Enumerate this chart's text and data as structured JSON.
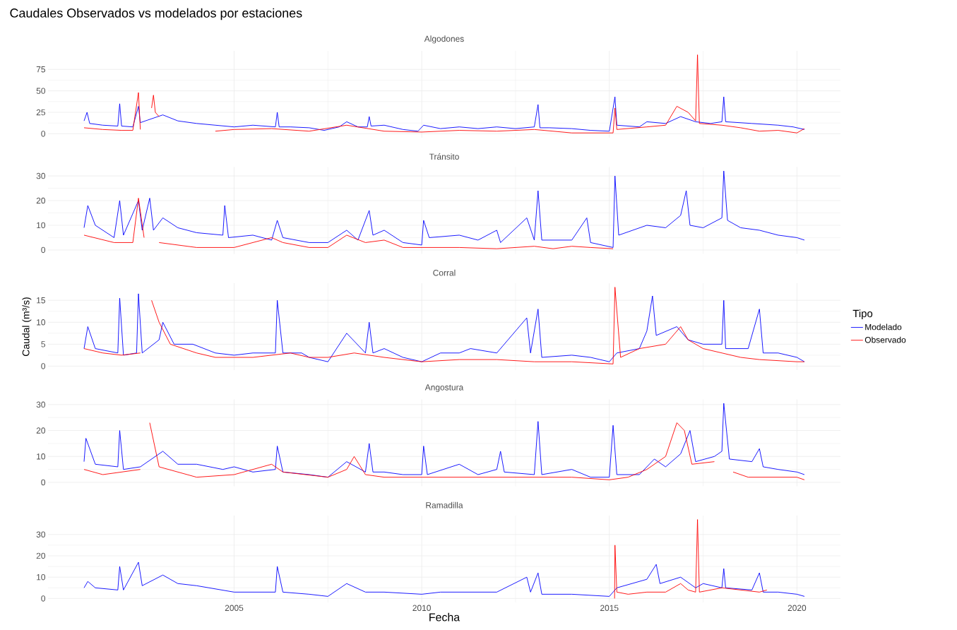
{
  "chart_data": [
    {
      "type": "line",
      "title": "Algodones",
      "annotations": [
        "Caudales Observados vs modelados por estaciones"
      ],
      "xlim": [
        2000.04,
        2021.16
      ],
      "xticks": [
        2005,
        2010,
        2015,
        2020
      ],
      "ylim": [
        -4.6,
        96.6
      ],
      "yticks": [
        0,
        25,
        50,
        75
      ],
      "grid": true,
      "tick_labels": "y",
      "series": [
        {
          "color": "#0000ff",
          "x": [
            2001.0,
            2001.08,
            2001.15,
            2001.5,
            2001.9,
            2001.95,
            2002.0,
            2002.3,
            2002.45,
            2002.5,
            2002.7,
            2003.1,
            2003.5,
            2004.0,
            2004.5,
            2005.0,
            2005.5,
            2006.1,
            2006.15,
            2006.2,
            2006.5,
            2007.0,
            2007.4,
            2007.8,
            2008.0,
            2008.3,
            2008.55,
            2008.6,
            2008.65,
            2009.0,
            2009.5,
            2009.9,
            2010.05,
            2010.5,
            2011.0,
            2011.5,
            2012.0,
            2012.5,
            2013.0,
            2013.1,
            2013.15,
            2013.4,
            2014.0,
            2014.5,
            2015.0,
            2015.15,
            2015.2,
            2015.8,
            2016.0,
            2016.5,
            2016.9,
            2017.3,
            2017.7,
            2018.0,
            2018.05,
            2018.1,
            2018.8,
            2019.5,
            2019.9,
            2020.2
          ],
          "values": [
            15,
            25,
            12,
            10,
            9,
            35,
            9,
            8,
            32,
            13,
            16,
            22,
            15,
            12,
            10,
            8,
            10,
            8,
            25,
            8,
            8,
            7,
            4,
            8,
            14,
            8,
            8,
            20,
            9,
            10,
            5,
            3,
            10,
            6,
            8,
            6,
            8,
            6,
            8,
            34,
            7,
            7,
            6,
            4,
            3,
            43,
            10,
            8,
            14,
            12,
            20,
            14,
            12,
            14,
            43,
            14,
            12,
            10,
            8,
            5
          ]
        },
        {
          "color": "#ff0000",
          "x": [
            2001.0,
            2001.5,
            2002.0,
            2002.3,
            2002.45,
            2002.5,
            2002.7,
            2002.8,
            2002.85,
            2002.9,
            2003.0,
            2003.1,
            2004.5,
            2005.0,
            2006.0,
            2007.0,
            2008.0,
            2009.0,
            2010.0,
            2011.0,
            2012.0,
            2013.0,
            2014.0,
            2015.1,
            2015.15,
            2015.2,
            2016.0,
            2016.5,
            2016.8,
            2017.1,
            2017.3,
            2017.35,
            2017.4,
            2018.0,
            2018.5,
            2019.0,
            2019.5,
            2020.0,
            2020.2
          ],
          "values": [
            7,
            5,
            4,
            4,
            48,
            5,
            null,
            30,
            45,
            25,
            20,
            null,
            3,
            5,
            6,
            3,
            10,
            3,
            2,
            4,
            3,
            5,
            1,
            1,
            30,
            5,
            8,
            10,
            32,
            25,
            15,
            92,
            12,
            10,
            7,
            3,
            4,
            1,
            6
          ]
        }
      ]
    },
    {
      "type": "line",
      "title": "Tránsito",
      "xlim": [
        2000.04,
        2021.16
      ],
      "xticks": [
        2005,
        2010,
        2015,
        2020
      ],
      "ylim": [
        -1.6,
        33.6
      ],
      "yticks": [
        0,
        10,
        20,
        30
      ],
      "grid": true,
      "tick_labels": "y",
      "series": [
        {
          "color": "#0000ff",
          "x": [
            2001.0,
            2001.1,
            2001.3,
            2001.8,
            2001.95,
            2002.05,
            2002.45,
            2002.55,
            2002.75,
            2002.85,
            2003.1,
            2003.5,
            2004.0,
            2004.7,
            2004.75,
            2004.85,
            2005.5,
            2006.0,
            2006.15,
            2006.3,
            2007.0,
            2007.5,
            2008.0,
            2008.3,
            2008.6,
            2008.7,
            2009.0,
            2009.5,
            2010.0,
            2010.05,
            2010.2,
            2011.0,
            2011.5,
            2012.0,
            2012.1,
            2012.8,
            2013.0,
            2013.1,
            2013.2,
            2014.0,
            2014.4,
            2014.5,
            2015.1,
            2015.15,
            2015.25,
            2016.0,
            2016.5,
            2016.9,
            2017.05,
            2017.15,
            2017.5,
            2018.0,
            2018.05,
            2018.15,
            2018.5,
            2019.0,
            2019.5,
            2020.0,
            2020.2
          ],
          "values": [
            9,
            18,
            10,
            5,
            20,
            6,
            20,
            8,
            21,
            8,
            13,
            9,
            7,
            6,
            18,
            5,
            6,
            4,
            12,
            5,
            3,
            3,
            8,
            4,
            16,
            6,
            8,
            3,
            2,
            12,
            5,
            6,
            4,
            8,
            3,
            13,
            4,
            24,
            4,
            4,
            13,
            3,
            1,
            30,
            6,
            10,
            9,
            14,
            24,
            10,
            9,
            13,
            32,
            12,
            9,
            8,
            6,
            5,
            4
          ]
        },
        {
          "color": "#ff0000",
          "x": [
            2001.0,
            2001.8,
            2002.3,
            2002.45,
            2002.6,
            2002.7,
            2003.0,
            2004.0,
            2005.0,
            2006.0,
            2006.3,
            2007.0,
            2007.5,
            2008.0,
            2008.5,
            2009.0,
            2009.5,
            2010.0,
            2011.0,
            2012.0,
            2013.0,
            2013.5,
            2014.0,
            2014.5,
            2015.1
          ],
          "values": [
            6,
            3,
            3,
            21,
            5,
            null,
            3,
            1,
            1,
            5,
            3,
            1,
            1,
            6,
            3,
            4,
            1,
            1,
            1,
            0.5,
            1.5,
            0.5,
            1.5,
            1,
            0.5
          ]
        }
      ]
    },
    {
      "type": "line",
      "title": "Corral",
      "ylabel": "Caudal (m³/s)",
      "legend": "right",
      "legend_title": "Tipo",
      "xlim": [
        2000.04,
        2021.16
      ],
      "xticks": [
        2005,
        2010,
        2015,
        2020
      ],
      "ylim": [
        -0.9,
        18.9
      ],
      "yticks": [
        0,
        5,
        10,
        15
      ],
      "grid": true,
      "tick_labels": "y",
      "series": [
        {
          "name": "Modelado",
          "color": "#0000ff",
          "x": [
            2001.0,
            2001.1,
            2001.3,
            2001.9,
            2001.95,
            2002.05,
            2002.4,
            2002.45,
            2002.55,
            2003.0,
            2003.1,
            2003.4,
            2003.9,
            2004.5,
            2005.0,
            2005.5,
            2006.1,
            2006.15,
            2006.3,
            2006.8,
            2007.0,
            2007.5,
            2008.0,
            2008.5,
            2008.6,
            2008.7,
            2009.0,
            2009.5,
            2010.0,
            2010.5,
            2011.0,
            2011.3,
            2012.0,
            2012.8,
            2012.9,
            2013.1,
            2013.2,
            2014.0,
            2014.5,
            2015.0,
            2015.2,
            2015.8,
            2016.0,
            2016.15,
            2016.25,
            2016.8,
            2017.1,
            2017.5,
            2018.0,
            2018.05,
            2018.1,
            2018.7,
            2019.0,
            2019.1,
            2019.5,
            2020.0,
            2020.2
          ],
          "values": [
            4,
            9,
            4,
            3,
            15.5,
            2.5,
            3,
            16.5,
            3,
            6,
            10,
            5,
            5,
            3,
            2.5,
            3,
            3,
            15,
            3,
            3,
            2,
            1,
            7.5,
            3,
            10,
            3,
            4,
            2,
            1,
            3,
            3,
            4,
            3,
            11,
            3,
            13,
            2,
            2.5,
            2,
            1,
            3,
            4,
            8,
            16,
            7,
            9,
            6,
            5,
            5,
            15,
            4,
            4,
            13,
            3,
            3,
            2,
            1
          ]
        },
        {
          "name": "Observado",
          "color": "#ff0000",
          "x": [
            2001.0,
            2001.5,
            2002.0,
            2002.5,
            2002.7,
            2002.8,
            2003.0,
            2003.3,
            2004.0,
            2004.5,
            2005.5,
            2006.5,
            2007.0,
            2007.5,
            2008.2,
            2009.0,
            2009.5,
            2010.0,
            2011.0,
            2012.0,
            2013.0,
            2014.0,
            2015.1,
            2015.15,
            2015.3,
            2015.8,
            2016.5,
            2016.9,
            2017.1,
            2017.5,
            2018.0,
            2018.5,
            2019.0,
            2020.0,
            2020.2
          ],
          "values": [
            4,
            3,
            2.5,
            3,
            null,
            15,
            10,
            5,
            3,
            2,
            2,
            3,
            2,
            2,
            3,
            2,
            1.5,
            1,
            1.5,
            1.5,
            1,
            1,
            0.5,
            18,
            2,
            4,
            5,
            9,
            6,
            4,
            3,
            2,
            1.5,
            1,
            1
          ]
        }
      ]
    },
    {
      "type": "line",
      "title": "Angostura",
      "xlim": [
        2000.04,
        2021.16
      ],
      "xticks": [
        2005,
        2010,
        2015,
        2020
      ],
      "ylim": [
        -1.5,
        32.0
      ],
      "yticks": [
        0,
        10,
        20,
        30
      ],
      "grid": true,
      "tick_labels": "y",
      "series": [
        {
          "color": "#0000ff",
          "x": [
            2001.0,
            2001.05,
            2001.3,
            2001.9,
            2001.95,
            2002.05,
            2002.5,
            2003.1,
            2003.5,
            2004.0,
            2004.7,
            2005.0,
            2005.5,
            2006.1,
            2006.15,
            2006.3,
            2007.0,
            2007.5,
            2008.0,
            2008.5,
            2008.6,
            2008.7,
            2009.0,
            2009.5,
            2010.0,
            2010.05,
            2010.15,
            2011.0,
            2011.5,
            2012.0,
            2012.1,
            2012.2,
            2013.0,
            2013.1,
            2013.2,
            2014.0,
            2014.5,
            2015.0,
            2015.1,
            2015.2,
            2015.8,
            2016.2,
            2016.5,
            2016.9,
            2017.15,
            2017.3,
            2017.8,
            2018.0,
            2018.05,
            2018.2,
            2018.8,
            2019.0,
            2019.1,
            2019.5,
            2020.0,
            2020.2
          ],
          "values": [
            8,
            17,
            7,
            6,
            20,
            5,
            6,
            12,
            7,
            7,
            5,
            6,
            4,
            5,
            14,
            4,
            3,
            2,
            8,
            4,
            15,
            4,
            4,
            3,
            3,
            14,
            3,
            7,
            3,
            5,
            12,
            4,
            3,
            23.5,
            3,
            5,
            2,
            2,
            22,
            3,
            3,
            9,
            6,
            11,
            20,
            8,
            10,
            12,
            30.5,
            9,
            8,
            13,
            6,
            5,
            4,
            3
          ]
        },
        {
          "color": "#ff0000",
          "x": [
            2001.0,
            2001.5,
            2002.5,
            2002.7,
            2002.75,
            2003.0,
            2004.0,
            2005.0,
            2006.0,
            2006.3,
            2007.5,
            2008.0,
            2008.2,
            2008.5,
            2009.0,
            2010.0,
            2011.0,
            2012.0,
            2013.0,
            2014.0,
            2015.0,
            2015.5,
            2016.0,
            2016.5,
            2016.8,
            2017.0,
            2017.2,
            2017.8,
            2018.0,
            2018.3,
            2018.7,
            2019.5,
            2020.0,
            2020.2
          ],
          "values": [
            5,
            3,
            5,
            null,
            23,
            6,
            2,
            3,
            7,
            4,
            2,
            5,
            10,
            3,
            2,
            2,
            2,
            2,
            2,
            2,
            1,
            2,
            5,
            10,
            23,
            20,
            7,
            8,
            null,
            4,
            2,
            2,
            2,
            1
          ]
        }
      ]
    },
    {
      "type": "line",
      "title": "Ramadilla",
      "xlabel": "Fecha",
      "xlim": [
        2000.04,
        2021.16
      ],
      "xticks": [
        2005,
        2010,
        2015,
        2020
      ],
      "ylim": [
        -1.85,
        38.85
      ],
      "yticks": [
        0,
        10,
        20,
        30
      ],
      "grid": true,
      "series": [
        {
          "color": "#0000ff",
          "x": [
            2001.0,
            2001.1,
            2001.3,
            2001.9,
            2001.95,
            2002.05,
            2002.45,
            2002.55,
            2003.1,
            2003.5,
            2004.0,
            2005.0,
            2005.5,
            2006.1,
            2006.15,
            2006.3,
            2007.0,
            2007.5,
            2008.0,
            2008.5,
            2009.0,
            2010.0,
            2010.5,
            2011.0,
            2012.0,
            2012.8,
            2012.9,
            2013.1,
            2013.2,
            2014.0,
            2015.0,
            2015.2,
            2016.0,
            2016.25,
            2016.35,
            2016.9,
            2017.3,
            2017.5,
            2018.0,
            2018.05,
            2018.1,
            2018.8,
            2019.0,
            2019.1,
            2019.5,
            2020.0,
            2020.2
          ],
          "values": [
            5,
            8,
            5,
            4,
            15,
            4,
            17,
            6,
            11,
            7,
            6,
            3,
            3,
            3,
            15,
            3,
            2,
            1,
            7,
            3,
            3,
            2,
            3,
            3,
            3,
            10,
            3,
            12,
            2,
            2,
            1,
            5,
            9,
            16,
            7,
            10,
            5,
            7,
            5,
            14,
            5,
            4,
            12,
            3,
            3,
            2,
            1
          ]
        },
        {
          "color": "#ff0000",
          "x": [
            2015.14,
            2015.15,
            2015.2,
            2015.5,
            2016.0,
            2016.5,
            2016.9,
            2017.1,
            2017.3,
            2017.35,
            2017.4,
            2018.0,
            2018.5,
            2019.0,
            2019.2
          ],
          "values": [
            0,
            25,
            3,
            2,
            3,
            3,
            7,
            4,
            3,
            37,
            3,
            5,
            4,
            3,
            4
          ]
        }
      ]
    }
  ]
}
